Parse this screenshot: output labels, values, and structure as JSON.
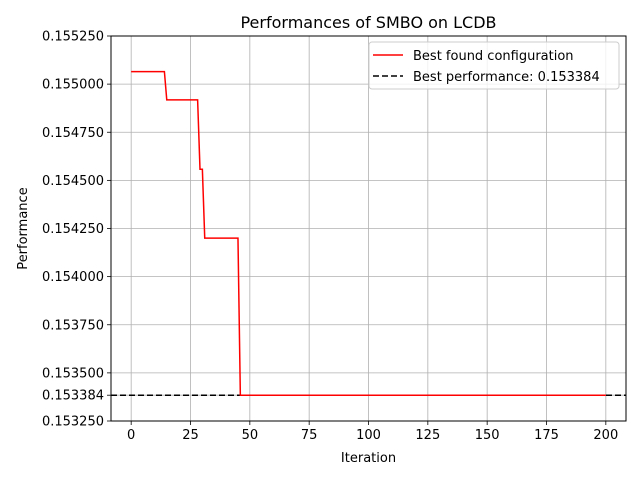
{
  "chart_data": {
    "type": "line",
    "title": "Performances of SMBO on LCDB",
    "xlabel": "Iteration",
    "ylabel": "Performance",
    "xlim": [
      -8.5,
      208.5
    ],
    "ylim": [
      0.15325,
      0.15525
    ],
    "x_ticks": [
      0,
      25,
      50,
      75,
      100,
      125,
      150,
      175,
      200
    ],
    "y_ticks": [
      {
        "value": 0.15325,
        "label": "0.153250"
      },
      {
        "value": 0.153384,
        "label": "0.153384"
      },
      {
        "value": 0.1535,
        "label": "0.153500"
      },
      {
        "value": 0.15375,
        "label": "0.153750"
      },
      {
        "value": 0.154,
        "label": "0.154000"
      },
      {
        "value": 0.15425,
        "label": "0.154250"
      },
      {
        "value": 0.1545,
        "label": "0.154500"
      },
      {
        "value": 0.15475,
        "label": "0.154750"
      },
      {
        "value": 0.155,
        "label": "0.155000"
      },
      {
        "value": 0.15525,
        "label": "0.155250"
      }
    ],
    "grid": true,
    "legend_position": "top-right",
    "series": [
      {
        "name": "Best found configuration",
        "color": "#ff0000",
        "style": "solid",
        "step": true,
        "points": [
          {
            "x": 0,
            "y": 0.155065
          },
          {
            "x": 14,
            "y": 0.155065
          },
          {
            "x": 15,
            "y": 0.154918
          },
          {
            "x": 28,
            "y": 0.154918
          },
          {
            "x": 29,
            "y": 0.154558
          },
          {
            "x": 30,
            "y": 0.154558
          },
          {
            "x": 31,
            "y": 0.1542
          },
          {
            "x": 45,
            "y": 0.1542
          },
          {
            "x": 46,
            "y": 0.153384
          },
          {
            "x": 200,
            "y": 0.153384
          }
        ]
      }
    ],
    "reference_line": {
      "name": "Best performance: 0.153384",
      "y": 0.153384,
      "color": "#000000",
      "style": "dashed"
    }
  }
}
